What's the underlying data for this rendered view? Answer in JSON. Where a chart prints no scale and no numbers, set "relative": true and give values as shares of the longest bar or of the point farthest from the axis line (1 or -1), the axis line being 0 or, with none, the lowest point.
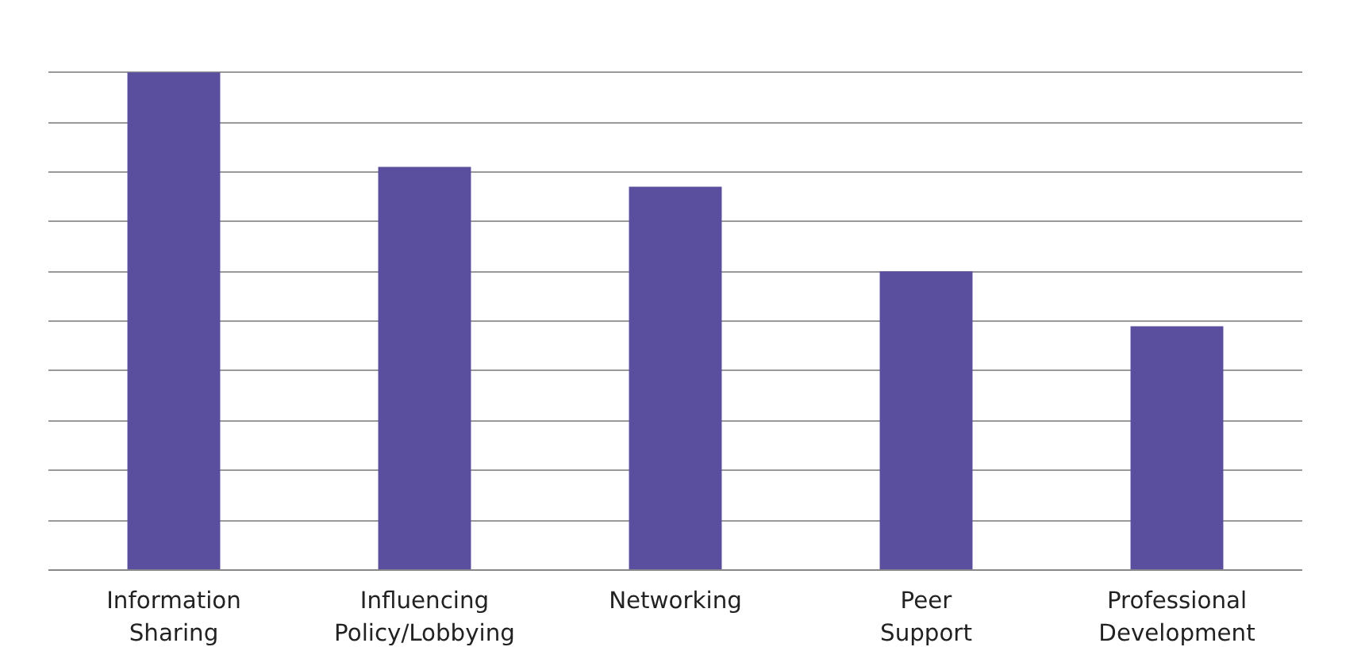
{
  "chart_data": {
    "type": "bar",
    "relative": true,
    "categories": [
      "Information Sharing",
      "Influencing Policy/Lobbying",
      "Networking",
      "Peer Support",
      "Professional Development"
    ],
    "values": [
      1,
      0.81,
      0.77,
      0.6,
      0.49
    ],
    "color": "#5a4e9e",
    "grid": "y"
  }
}
